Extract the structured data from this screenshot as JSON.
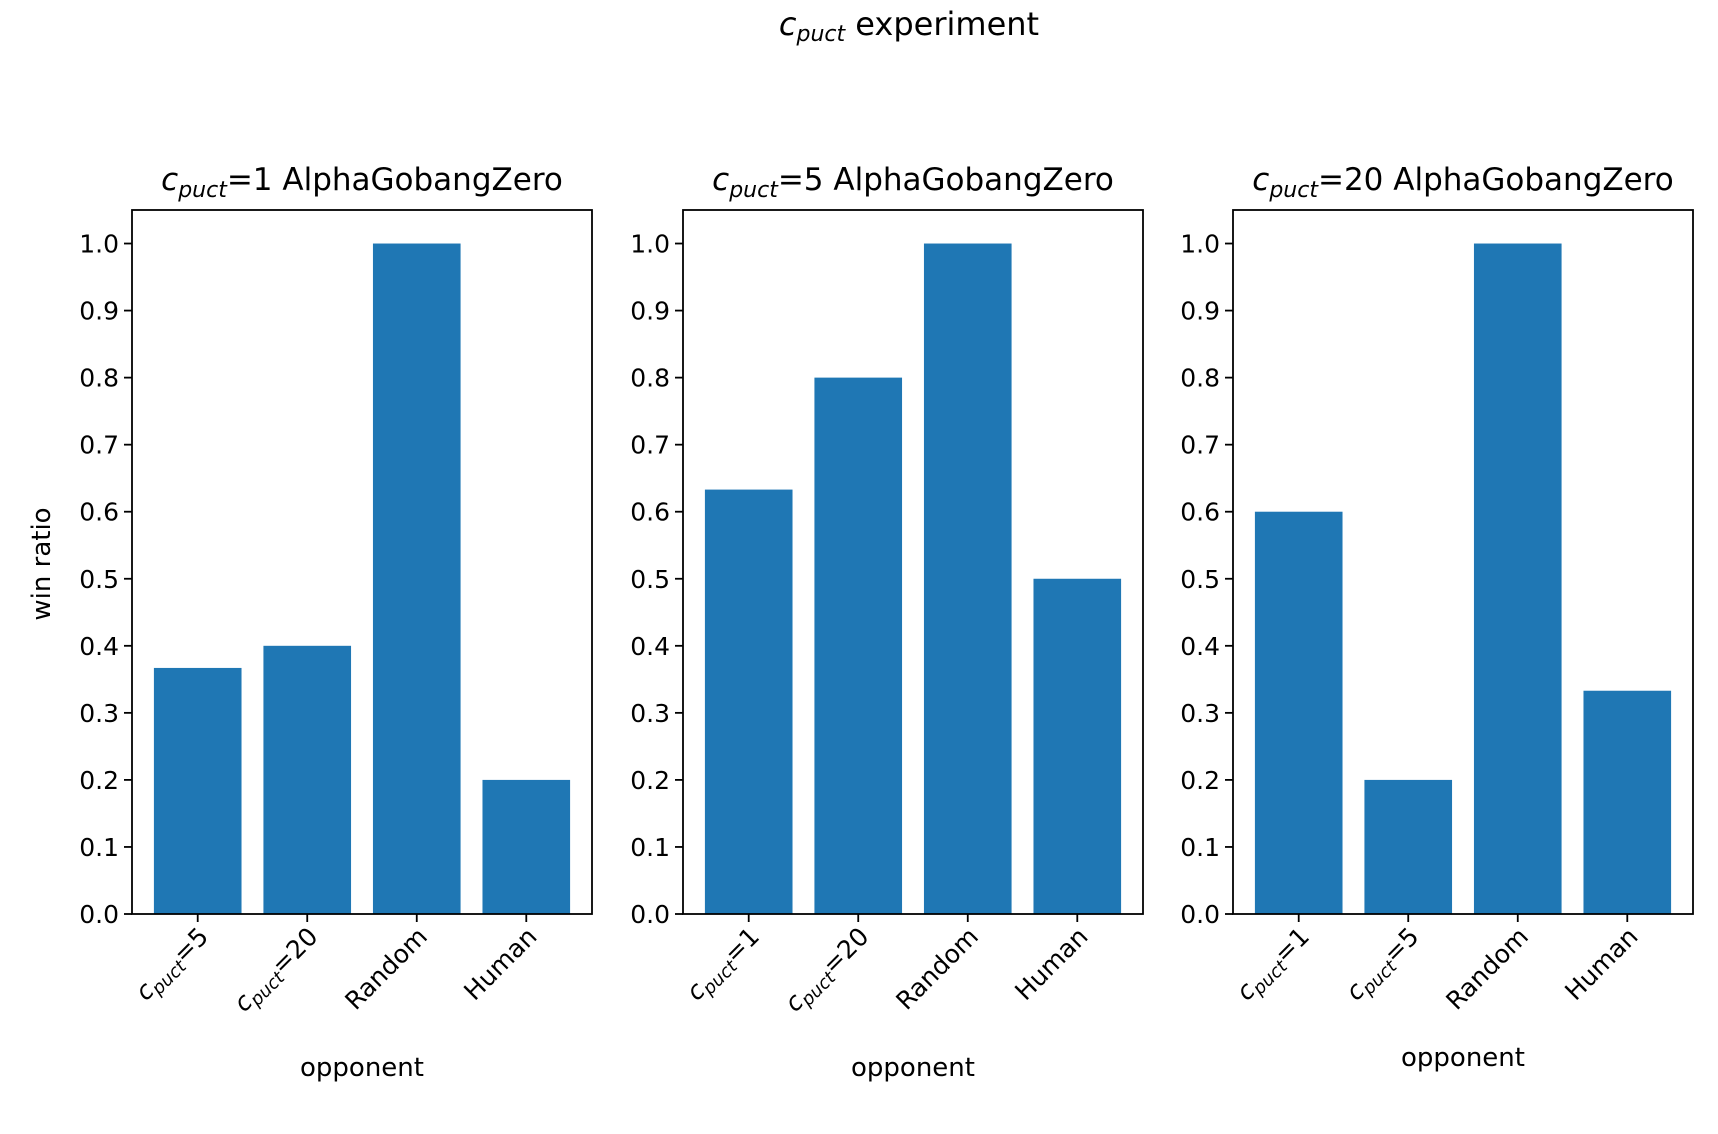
{
  "figure": {
    "suptitle": {
      "base": "c",
      "sub": "puct",
      "rest": " experiment"
    },
    "ylabel": "win ratio",
    "xlabel": "opponent",
    "ytick_labels": [
      "0.0",
      "0.1",
      "0.2",
      "0.3",
      "0.4",
      "0.5",
      "0.6",
      "0.7",
      "0.8",
      "0.9",
      "1.0"
    ],
    "bar_color": "#1f77b4"
  },
  "chart_data": [
    {
      "type": "bar",
      "title": {
        "base": "c",
        "sub": "puct",
        "rest": "=1 AlphaGobangZero"
      },
      "categories": [
        {
          "base": "c",
          "sub": "puct",
          "rest": "=5"
        },
        {
          "base": "c",
          "sub": "puct",
          "rest": "=20"
        },
        {
          "text": "Random"
        },
        {
          "text": "Human"
        }
      ],
      "values": [
        0.367,
        0.4,
        1.0,
        0.2
      ],
      "ylim": [
        0,
        1.05
      ],
      "ylabel": "win ratio",
      "xlabel": "opponent",
      "grid": false
    },
    {
      "type": "bar",
      "title": {
        "base": "c",
        "sub": "puct",
        "rest": "=5 AlphaGobangZero"
      },
      "categories": [
        {
          "base": "c",
          "sub": "puct",
          "rest": "=1"
        },
        {
          "base": "c",
          "sub": "puct",
          "rest": "=20"
        },
        {
          "text": "Random"
        },
        {
          "text": "Human"
        }
      ],
      "values": [
        0.633,
        0.8,
        1.0,
        0.5
      ],
      "ylim": [
        0,
        1.05
      ],
      "ylabel": "",
      "xlabel": "opponent",
      "grid": false
    },
    {
      "type": "bar",
      "title": {
        "base": "c",
        "sub": "puct",
        "rest": "=20 AlphaGobangZero"
      },
      "categories": [
        {
          "base": "c",
          "sub": "puct",
          "rest": "=1"
        },
        {
          "base": "c",
          "sub": "puct",
          "rest": "=5"
        },
        {
          "text": "Random"
        },
        {
          "text": "Human"
        }
      ],
      "values": [
        0.6,
        0.2,
        1.0,
        0.333
      ],
      "ylim": [
        0,
        1.05
      ],
      "ylabel": "",
      "xlabel": "opponent",
      "grid": false
    }
  ]
}
